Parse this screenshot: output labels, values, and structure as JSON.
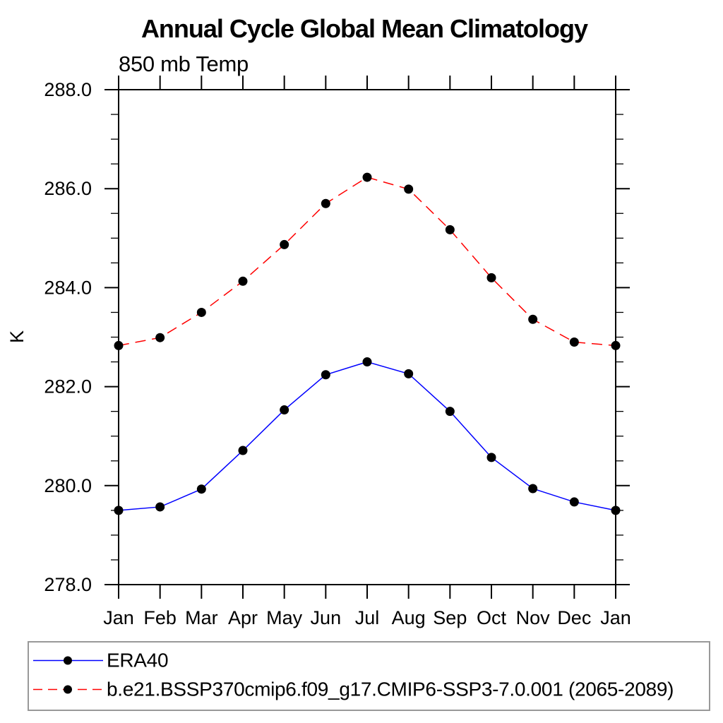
{
  "chart_data": {
    "type": "line",
    "title": "Annual Cycle Global Mean Climatology",
    "subtitle": "850 mb Temp",
    "ylabel": "K",
    "x_tick_labels": [
      "Jan",
      "Feb",
      "Mar",
      "Apr",
      "May",
      "Jun",
      "Jul",
      "Aug",
      "Sep",
      "Oct",
      "Nov",
      "Dec",
      "Jan"
    ],
    "ylim": [
      278.0,
      288.0
    ],
    "y_major_step": 2.0,
    "y_minor_step": 0.5,
    "y_tick_labels": [
      "278.0",
      "280.0",
      "282.0",
      "284.0",
      "286.0",
      "288.0"
    ],
    "grid": false,
    "legend_position": "bottom-left-box",
    "frame_color": "#000000",
    "legend_border_color": "#999999",
    "series": [
      {
        "name": "ERA40",
        "color": "#0000ff",
        "line_style": "solid",
        "marker": "filled-circle",
        "marker_color": "#000000",
        "values": [
          279.5,
          279.57,
          279.93,
          280.71,
          281.53,
          282.24,
          282.5,
          282.26,
          281.5,
          280.57,
          279.94,
          279.67,
          279.5
        ]
      },
      {
        "name": "b.e21.BSSP370cmip6.f09_g17.CMIP6-SSP3-7.0.001 (2065-2089)",
        "color": "#ff0000",
        "line_style": "dashed",
        "marker": "filled-circle",
        "marker_color": "#000000",
        "values": [
          282.83,
          282.99,
          283.5,
          284.13,
          284.87,
          285.7,
          286.23,
          285.99,
          285.17,
          284.2,
          283.36,
          282.9,
          282.83
        ]
      }
    ]
  }
}
